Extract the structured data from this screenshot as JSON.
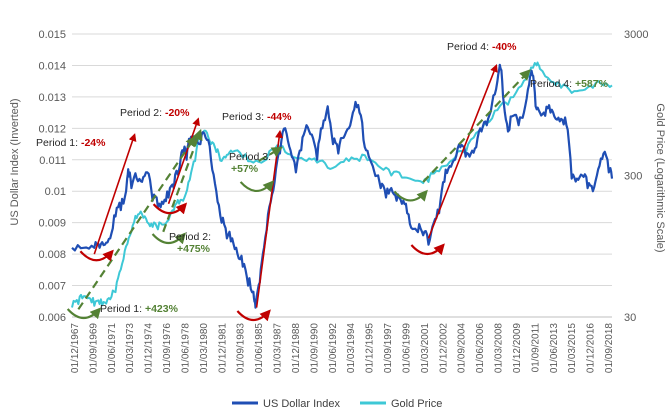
{
  "chart_data": {
    "type": "line",
    "title": "",
    "left_axis": {
      "label": "US Dollar Index (Inverted)",
      "ticks": [
        "0.015",
        "0.014",
        "0.013",
        "0.012",
        "0.011",
        "0.01",
        "0.009",
        "0.008",
        "0.007",
        "0.006"
      ],
      "range": [
        0.006,
        0.015
      ]
    },
    "right_axis": {
      "label": "Gold Price (Logarithmic Scale)",
      "ticks": [
        "3000",
        "300",
        "30"
      ],
      "scale": "log",
      "range": [
        30,
        3000
      ]
    },
    "x_tick_labels": [
      "01/12/1967",
      "01/09/1969",
      "01/06/1971",
      "01/03/1973",
      "01/12/1974",
      "01/09/1976",
      "01/06/1978",
      "01/03/1980",
      "01/12/1981",
      "01/09/1983",
      "01/06/1985",
      "01/03/1987",
      "01/12/1988",
      "01/09/1990",
      "01/06/1992",
      "01/03/1994",
      "01/12/1995",
      "01/09/1997",
      "01/06/1999",
      "01/03/2001",
      "01/12/2002",
      "01/09/2004",
      "01/06/2006",
      "01/03/2008",
      "01/12/2009",
      "01/09/2011",
      "01/06/2013",
      "01/03/2015",
      "01/12/2016",
      "01/09/2018"
    ],
    "grid": true,
    "legend": "bottom",
    "series": [
      {
        "name": "US Dollar Index",
        "color": "#1f4eb4",
        "axis": "left",
        "x": [
          1967.9,
          1969.0,
          1970.0,
          1970.5,
          1971.0,
          1971.5,
          1972.0,
          1972.5,
          1973.0,
          1973.2,
          1973.5,
          1974.0,
          1974.5,
          1975.0,
          1975.5,
          1976.0,
          1976.5,
          1977.0,
          1977.5,
          1978.0,
          1978.3,
          1978.7,
          1979.0,
          1979.5,
          1980.0,
          1980.5,
          1981.0,
          1981.5,
          1982.0,
          1982.5,
          1983.0,
          1983.5,
          1984.0,
          1984.5,
          1985.0,
          1985.2,
          1985.6,
          1986.0,
          1986.5,
          1987.0,
          1987.5,
          1988.0,
          1988.5,
          1989.0,
          1989.5,
          1990.0,
          1990.5,
          1991.0,
          1991.5,
          1992.0,
          1992.5,
          1993.0,
          1993.5,
          1994.0,
          1994.5,
          1995.0,
          1995.5,
          1996.0,
          1997.0,
          1997.5,
          1998.0,
          1998.5,
          1999.0,
          1999.5,
          2000.0,
          2000.5,
          2001.0,
          2001.5,
          2002.0,
          2002.5,
          2003.0,
          2003.5,
          2004.0,
          2004.5,
          2005.0,
          2005.5,
          2006.0,
          2006.5,
          2007.0,
          2007.5,
          2008.0,
          2008.3,
          2008.6,
          2009.0,
          2009.5,
          2010.0,
          2010.5,
          2011.0,
          2011.3,
          2011.6,
          2012.0,
          2012.5,
          2013.0,
          2013.5,
          2014.0,
          2014.5,
          2015.0,
          2015.5,
          2016.0,
          2016.5,
          2017.0,
          2017.5,
          2018.0,
          2018.5,
          2018.8
        ],
        "values": [
          0.0082,
          0.0082,
          0.0082,
          0.0082,
          0.0083,
          0.0085,
          0.0092,
          0.0094,
          0.01,
          0.0107,
          0.0101,
          0.0104,
          0.0103,
          0.0106,
          0.0097,
          0.0095,
          0.0096,
          0.0098,
          0.0101,
          0.0107,
          0.0113,
          0.011,
          0.0116,
          0.0117,
          0.0115,
          0.0117,
          0.011,
          0.01,
          0.009,
          0.0085,
          0.0085,
          0.008,
          0.0076,
          0.007,
          0.0068,
          0.0063,
          0.0071,
          0.0082,
          0.0095,
          0.0103,
          0.0112,
          0.012,
          0.0113,
          0.0106,
          0.0113,
          0.0121,
          0.0118,
          0.011,
          0.012,
          0.0127,
          0.0115,
          0.0112,
          0.0117,
          0.012,
          0.0126,
          0.0125,
          0.0114,
          0.011,
          0.0101,
          0.0098,
          0.0101,
          0.0097,
          0.0096,
          0.0093,
          0.0088,
          0.0087,
          0.0086,
          0.0083,
          0.009,
          0.0093,
          0.0103,
          0.0108,
          0.011,
          0.0114,
          0.0111,
          0.0112,
          0.0114,
          0.0119,
          0.0121,
          0.0128,
          0.0135,
          0.0139,
          0.0128,
          0.0119,
          0.0124,
          0.0121,
          0.0125,
          0.0134,
          0.0137,
          0.0127,
          0.0125,
          0.0124,
          0.0125,
          0.0123,
          0.0123,
          0.0121,
          0.0104,
          0.0104,
          0.0105,
          0.0101,
          0.01,
          0.0107,
          0.0112,
          0.0106,
          0.0104
        ]
      },
      {
        "name": "Gold Price",
        "color": "#3ec8d6",
        "axis": "right",
        "x": [
          1967.9,
          1968.5,
          1969.0,
          1969.5,
          1970.0,
          1970.5,
          1971.0,
          1971.5,
          1972.0,
          1972.5,
          1973.0,
          1973.5,
          1974.0,
          1974.5,
          1975.0,
          1975.5,
          1976.0,
          1976.5,
          1977.0,
          1977.5,
          1978.0,
          1978.5,
          1979.0,
          1979.5,
          1980.0,
          1980.5,
          1981.0,
          1981.5,
          1982.0,
          1982.5,
          1983.0,
          1984.0,
          1985.0,
          1986.0,
          1987.0,
          1988.0,
          1989.0,
          1990.0,
          1991.0,
          1992.0,
          1993.0,
          1994.0,
          1995.0,
          1996.0,
          1997.0,
          1998.0,
          1999.0,
          2000.0,
          2001.0,
          2001.5,
          2002.0,
          2003.0,
          2004.0,
          2005.0,
          2006.0,
          2007.0,
          2008.0,
          2009.0,
          2010.0,
          2011.0,
          2011.7,
          2012.0,
          2013.0,
          2013.5,
          2014.0,
          2015.0,
          2016.0,
          2017.0,
          2018.0,
          2018.8
        ],
        "values": [
          35,
          37,
          42,
          41,
          36,
          37,
          38,
          40,
          45,
          65,
          95,
          120,
          150,
          160,
          140,
          130,
          125,
          135,
          145,
          170,
          190,
          210,
          280,
          380,
          600,
          620,
          500,
          440,
          380,
          420,
          440,
          400,
          370,
          380,
          460,
          440,
          400,
          380,
          370,
          340,
          360,
          380,
          380,
          390,
          340,
          300,
          290,
          280,
          265,
          270,
          310,
          350,
          400,
          430,
          600,
          700,
          870,
          950,
          1250,
          1550,
          1800,
          1700,
          1400,
          1300,
          1250,
          1150,
          1200,
          1250,
          1300,
          1300
        ]
      }
    ],
    "annotations": [
      {
        "label": "Period 1: ",
        "value": "-24%",
        "color": "#c00000"
      },
      {
        "label": "Period 2: ",
        "value": "-20%",
        "color": "#c00000"
      },
      {
        "label": "Period 3: ",
        "value": "-44%",
        "color": "#c00000"
      },
      {
        "label": "Period 4: ",
        "value": "-40%",
        "color": "#c00000"
      },
      {
        "label": "Period 1: ",
        "value": "+423%",
        "color": "#548235"
      },
      {
        "label": "Period 2:",
        "value": "+475%",
        "color": "#548235"
      },
      {
        "label": "Period 3:",
        "value": "+57%",
        "color": "#548235"
      },
      {
        "label": "Period 4: ",
        "value": "+587%",
        "color": "#548235"
      }
    ]
  }
}
